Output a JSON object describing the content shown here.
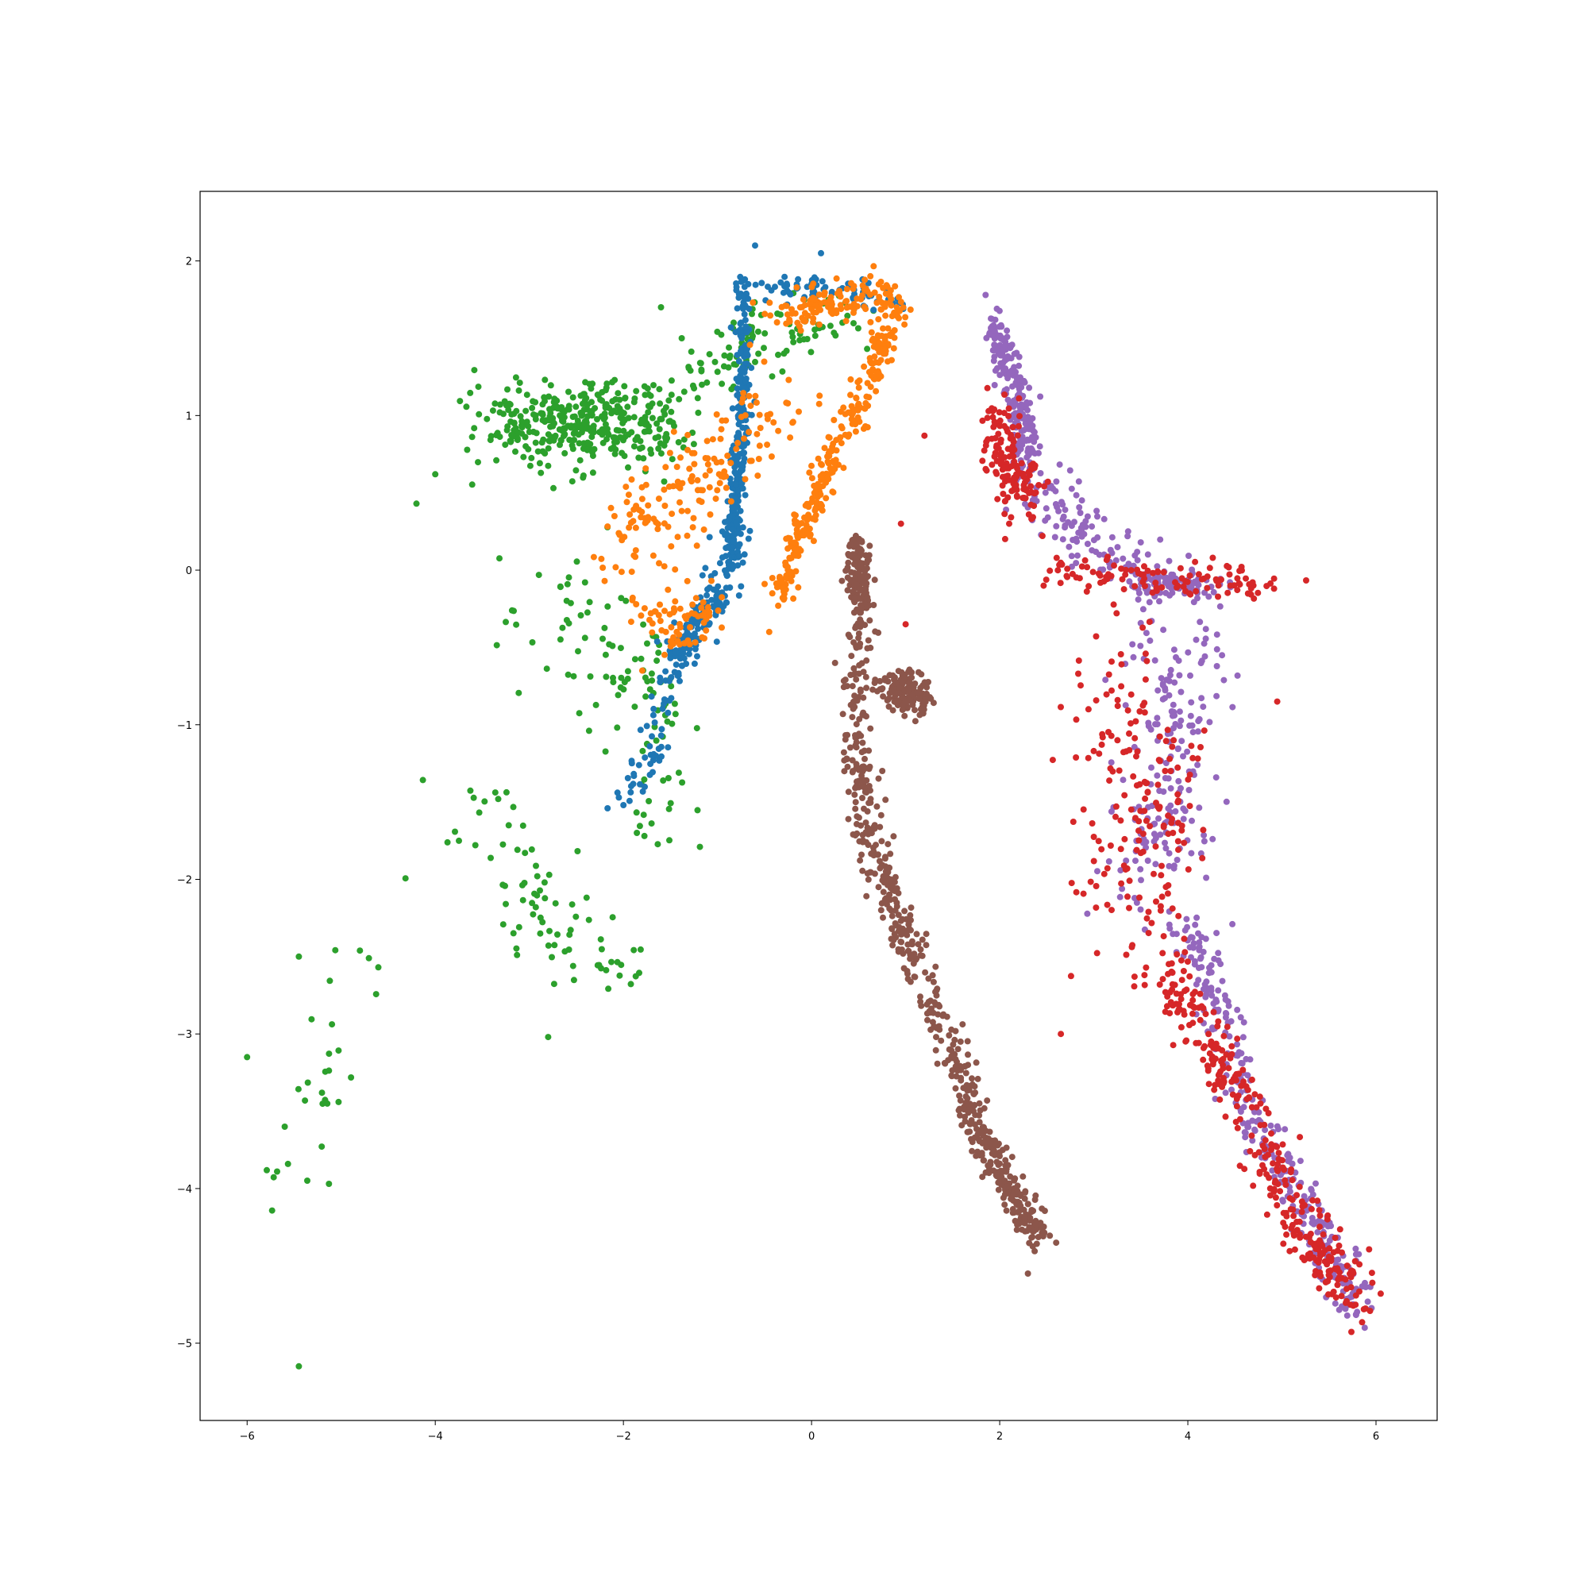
{
  "chart_data": {
    "type": "scatter",
    "title": "",
    "xlabel": "",
    "ylabel": "",
    "xlim": [
      -6.5,
      6.65
    ],
    "ylim": [
      -5.5,
      2.45
    ],
    "xticks": [
      -6,
      -4,
      -2,
      0,
      2,
      4,
      6
    ],
    "yticks": [
      -5,
      -4,
      -3,
      -2,
      -1,
      0,
      1,
      2
    ],
    "xtick_labels": [
      "−6",
      "−4",
      "−2",
      "0",
      "2",
      "4",
      "6"
    ],
    "ytick_labels": [
      "−5",
      "−4",
      "−3",
      "−2",
      "−1",
      "0",
      "1",
      "2"
    ],
    "grid": false,
    "legend": "none",
    "series": [
      {
        "color": "#2ca02c",
        "point_count": 700,
        "clusters": [
          {
            "n": 380,
            "path": [
              [
                -3.2,
                0.95
              ],
              [
                -2.4,
                0.95
              ],
              [
                -1.6,
                0.9
              ]
            ],
            "spread": [
              0.5,
              0.22
            ]
          },
          {
            "n": 100,
            "path": [
              [
                -1.3,
                1.2
              ],
              [
                -0.6,
                1.5
              ],
              [
                0.5,
                1.6
              ]
            ],
            "spread": [
              0.35,
              0.18
            ]
          },
          {
            "n": 110,
            "path": [
              [
                -2.8,
                -0.3
              ],
              [
                -1.8,
                -0.6
              ],
              [
                -1.5,
                -1.6
              ]
            ],
            "spread": [
              0.4,
              0.35
            ]
          },
          {
            "n": 80,
            "path": [
              [
                -3.8,
                -1.4
              ],
              [
                -2.8,
                -2.2
              ],
              [
                -2.2,
                -2.6
              ]
            ],
            "spread": [
              0.45,
              0.25
            ]
          },
          {
            "n": 30,
            "path": [
              [
                -4.5,
                -2.2
              ],
              [
                -5.2,
                -3.3
              ],
              [
                -5.5,
                -3.9
              ]
            ],
            "spread": [
              0.35,
              0.25
            ]
          }
        ],
        "outliers": [
          [
            -5.45,
            -5.15
          ],
          [
            -6.0,
            -3.15
          ],
          [
            -5.6,
            -3.6
          ],
          [
            -5.45,
            -2.5
          ],
          [
            -2.8,
            -3.02
          ],
          [
            -4.0,
            0.62
          ],
          [
            -4.2,
            0.43
          ],
          [
            -1.6,
            1.7
          ]
        ]
      },
      {
        "color": "#1f77b4",
        "point_count": 560,
        "clusters": [
          {
            "n": 260,
            "path": [
              [
                -0.72,
                1.9
              ],
              [
                -0.72,
                1.2
              ],
              [
                -0.78,
                0.6
              ],
              [
                -0.85,
                0.15
              ]
            ],
            "spread": [
              0.07,
              0.08
            ]
          },
          {
            "n": 180,
            "path": [
              [
                -0.8,
                0.2
              ],
              [
                -1.0,
                -0.2
              ],
              [
                -1.3,
                -0.4
              ],
              [
                -1.5,
                -0.65
              ]
            ],
            "spread": [
              0.15,
              0.1
            ]
          },
          {
            "n": 70,
            "path": [
              [
                -0.4,
                1.85
              ],
              [
                0.3,
                1.8
              ],
              [
                0.8,
                1.75
              ]
            ],
            "spread": [
              0.35,
              0.08
            ]
          },
          {
            "n": 50,
            "path": [
              [
                -1.5,
                -0.7
              ],
              [
                -1.7,
                -1.2
              ],
              [
                -2.0,
                -1.5
              ]
            ],
            "spread": [
              0.12,
              0.12
            ]
          }
        ],
        "outliers": [
          [
            -0.6,
            2.1
          ],
          [
            0.1,
            2.05
          ],
          [
            -2.0,
            -1.52
          ]
        ]
      },
      {
        "color": "#ff7f0e",
        "point_count": 650,
        "clusters": [
          {
            "n": 300,
            "path": [
              [
                0.95,
                1.75
              ],
              [
                0.6,
                1.2
              ],
              [
                0.2,
                0.7
              ],
              [
                -0.1,
                0.25
              ],
              [
                -0.35,
                -0.2
              ]
            ],
            "spread": [
              0.11,
              0.1
            ]
          },
          {
            "n": 120,
            "path": [
              [
                0.8,
                1.8
              ],
              [
                0.3,
                1.75
              ],
              [
                -0.3,
                1.65
              ]
            ],
            "spread": [
              0.3,
              0.1
            ]
          },
          {
            "n": 160,
            "path": [
              [
                -0.3,
                1.1
              ],
              [
                -1.0,
                0.7
              ],
              [
                -1.6,
                0.4
              ],
              [
                -2.0,
                0.2
              ]
            ],
            "spread": [
              0.4,
              0.25
            ]
          },
          {
            "n": 70,
            "path": [
              [
                -1.0,
                -0.2
              ],
              [
                -1.4,
                -0.4
              ],
              [
                -1.8,
                -0.2
              ]
            ],
            "spread": [
              0.25,
              0.15
            ]
          }
        ],
        "outliers": [
          [
            -2.2,
            -0.07
          ],
          [
            -0.45,
            -0.4
          ],
          [
            -1.8,
            -0.65
          ]
        ]
      },
      {
        "color": "#8c564b",
        "point_count": 900,
        "clusters": [
          {
            "n": 130,
            "path": [
              [
                0.5,
                0.2
              ],
              [
                0.5,
                -0.05
              ],
              [
                0.55,
                -0.2
              ]
            ],
            "spread": [
              0.11,
              0.12
            ]
          },
          {
            "n": 160,
            "path": [
              [
                0.85,
                -0.7
              ],
              [
                1.0,
                -0.8
              ],
              [
                1.1,
                -0.85
              ]
            ],
            "spread": [
              0.17,
              0.09
            ]
          },
          {
            "n": 610,
            "path": [
              [
                0.5,
                -0.3
              ],
              [
                0.5,
                -1.1
              ],
              [
                0.6,
                -1.7
              ],
              [
                0.9,
                -2.2
              ],
              [
                1.2,
                -2.7
              ],
              [
                1.6,
                -3.2
              ],
              [
                1.8,
                -3.7
              ],
              [
                2.2,
                -4.1
              ],
              [
                2.4,
                -4.3
              ]
            ],
            "spread": [
              0.14,
              0.1
            ]
          }
        ],
        "outliers": [
          [
            2.3,
            -4.55
          ],
          [
            2.6,
            -4.35
          ],
          [
            0.25,
            -0.6
          ]
        ]
      },
      {
        "color": "#9467bd",
        "point_count": 900,
        "clusters": [
          {
            "n": 200,
            "path": [
              [
                1.95,
                1.6
              ],
              [
                2.1,
                1.3
              ],
              [
                2.25,
                1.0
              ],
              [
                2.3,
                0.7
              ]
            ],
            "spread": [
              0.12,
              0.12
            ]
          },
          {
            "n": 130,
            "path": [
              [
                2.3,
                0.6
              ],
              [
                2.8,
                0.3
              ],
              [
                3.3,
                0.05
              ],
              [
                3.8,
                -0.1
              ]
            ],
            "spread": [
              0.25,
              0.18
            ]
          },
          {
            "n": 80,
            "path": [
              [
                3.5,
                -0.05
              ],
              [
                3.9,
                -0.1
              ],
              [
                4.2,
                -0.1
              ]
            ],
            "spread": [
              0.25,
              0.07
            ]
          },
          {
            "n": 190,
            "path": [
              [
                3.8,
                -0.4
              ],
              [
                3.9,
                -1.0
              ],
              [
                3.7,
                -1.6
              ],
              [
                3.6,
                -2.0
              ]
            ],
            "spread": [
              0.5,
              0.35
            ]
          },
          {
            "n": 300,
            "path": [
              [
                4.0,
                -2.3
              ],
              [
                4.3,
                -2.8
              ],
              [
                4.6,
                -3.4
              ],
              [
                5.0,
                -3.9
              ],
              [
                5.5,
                -4.4
              ],
              [
                5.8,
                -4.8
              ]
            ],
            "spread": [
              0.18,
              0.12
            ]
          }
        ],
        "outliers": [
          [
            5.88,
            -4.9
          ],
          [
            1.85,
            1.78
          ]
        ]
      },
      {
        "color": "#d62728",
        "point_count": 760,
        "clusters": [
          {
            "n": 140,
            "path": [
              [
                2.0,
                1.0
              ],
              [
                2.1,
                0.7
              ],
              [
                2.3,
                0.4
              ]
            ],
            "spread": [
              0.2,
              0.2
            ]
          },
          {
            "n": 110,
            "path": [
              [
                2.6,
                0.0
              ],
              [
                3.5,
                -0.05
              ],
              [
                4.3,
                -0.05
              ],
              [
                4.7,
                -0.1
              ]
            ],
            "spread": [
              0.4,
              0.1
            ]
          },
          {
            "n": 180,
            "path": [
              [
                3.0,
                -0.6
              ],
              [
                3.6,
                -1.2
              ],
              [
                3.4,
                -1.8
              ],
              [
                3.5,
                -2.4
              ]
            ],
            "spread": [
              0.55,
              0.4
            ]
          },
          {
            "n": 330,
            "path": [
              [
                3.8,
                -2.6
              ],
              [
                4.2,
                -3.0
              ],
              [
                4.6,
                -3.5
              ],
              [
                5.0,
                -4.0
              ],
              [
                5.4,
                -4.4
              ],
              [
                5.8,
                -4.75
              ]
            ],
            "spread": [
              0.22,
              0.16
            ]
          }
        ],
        "outliers": [
          [
            6.05,
            -4.68
          ],
          [
            4.95,
            -0.85
          ],
          [
            1.2,
            0.87
          ],
          [
            0.95,
            0.3
          ],
          [
            1.0,
            -0.35
          ],
          [
            2.65,
            -3.0
          ]
        ]
      }
    ]
  }
}
